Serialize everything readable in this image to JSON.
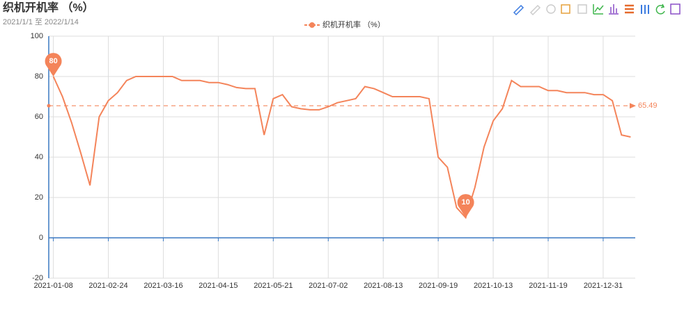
{
  "chart_data": {
    "type": "line",
    "title": "织机开机率 （%）",
    "subtitle": "2021/1/1 至 2022/1/14",
    "categories": [
      "2021-01-08",
      null,
      null,
      null,
      null,
      null,
      "2021-02-24",
      null,
      null,
      null,
      null,
      null,
      "2021-03-16",
      null,
      null,
      null,
      null,
      null,
      "2021-04-15",
      null,
      null,
      null,
      null,
      null,
      "2021-05-21",
      null,
      null,
      null,
      null,
      null,
      "2021-07-02",
      null,
      null,
      null,
      null,
      null,
      "2021-08-13",
      null,
      null,
      null,
      null,
      null,
      "2021-09-19",
      null,
      null,
      null,
      null,
      null,
      "2021-10-13",
      null,
      null,
      null,
      null,
      null,
      "2021-11-19",
      null,
      null,
      null,
      null,
      null,
      "2021-12-31",
      null,
      null,
      null
    ],
    "series": [
      {
        "name": "织机开机率 （%）",
        "color": "#f4845a",
        "values": [
          80,
          70,
          57,
          42,
          26,
          60,
          68,
          72,
          78,
          80,
          80,
          80,
          80,
          80,
          78,
          78,
          78,
          77,
          77,
          76,
          74.5,
          74,
          74,
          51,
          69,
          71,
          65,
          64,
          63.5,
          63.5,
          65,
          67,
          68,
          69,
          75,
          74,
          72,
          70,
          70,
          70,
          70,
          69,
          40,
          35,
          15,
          10,
          25,
          45,
          58,
          64,
          78,
          75,
          75,
          75,
          73,
          73,
          72,
          72,
          72,
          71,
          71,
          68,
          51,
          50
        ]
      }
    ],
    "mark_points": [
      80,
      10
    ],
    "mark_line": 65.49,
    "ylim": [
      -20,
      100
    ],
    "yticks": [
      -20,
      0,
      20,
      40,
      60,
      80,
      100
    ],
    "grid": true
  }
}
